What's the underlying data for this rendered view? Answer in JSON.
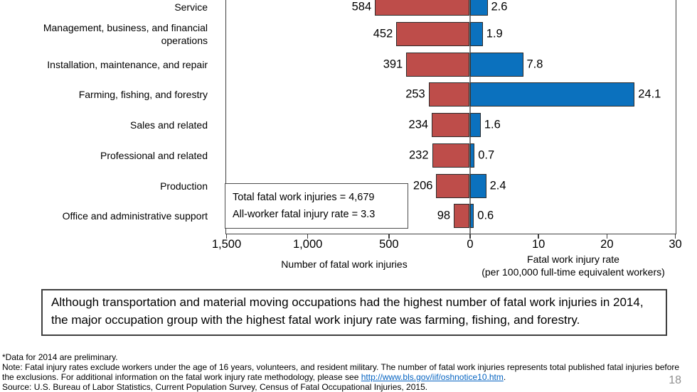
{
  "page_number": "18",
  "colors": {
    "injuries_bar": "#BE4D4A",
    "rate_bar": "#0B71BE",
    "bar_border": "#2b2b2b",
    "center_line": "#7f7f7f",
    "link": "#0563C1",
    "page_number": "#8f8f8f"
  },
  "chart_data": {
    "type": "bar",
    "subtype": "bidirectional-horizontal",
    "categories": [
      "Service",
      "Management, business, and financial operations",
      "Installation, maintenance, and repair",
      "Farming, fishing, and forestry",
      "Sales and related",
      "Professional and related",
      "Production",
      "Office and administrative support"
    ],
    "series": [
      {
        "name": "Number of fatal work injuries",
        "side": "left",
        "axis_max": 1500,
        "values": [
          584,
          452,
          391,
          253,
          234,
          232,
          206,
          98
        ]
      },
      {
        "name": "Fatal work injury rate",
        "side": "right",
        "axis_max": 30,
        "values": [
          2.6,
          1.9,
          7.8,
          24.1,
          1.6,
          0.7,
          2.4,
          0.6
        ]
      }
    ],
    "x_axis": {
      "left_ticks": [
        {
          "value": 1500,
          "label": "1,500"
        },
        {
          "value": 1000,
          "label": "1,000"
        },
        {
          "value": 500,
          "label": "500"
        },
        {
          "value": 0,
          "label": "0"
        }
      ],
      "right_ticks": [
        {
          "value": 10,
          "label": "10"
        },
        {
          "value": 20,
          "label": "20"
        },
        {
          "value": 30,
          "label": "30"
        }
      ],
      "left_title": "Number of fatal work injuries",
      "right_title_line1": "Fatal work injury rate",
      "right_title_line2": "(per 100,000 full-time equivalent workers)"
    },
    "stats_box": {
      "line1": "Total fatal work injuries = 4,679",
      "line2": "All-worker fatal injury rate = 3.3"
    },
    "gridlines": false,
    "legend": "none"
  },
  "callout": {
    "text": "Although transportation and material moving occupations had the highest number of fatal work injuries in 2014, the major occupation group with the highest fatal work injury rate was farming, fishing, and forestry."
  },
  "footnotes": {
    "line1": "*Data for 2014 are preliminary.",
    "note_before_link": "Note: Fatal injury rates exclude workers under the age of 16 years, volunteers, and resident military. The number of fatal work injuries represents total published fatal injuries before the exclusions. For additional information on the fatal work injury rate methodology, please see ",
    "link_text": "http://www.bls.gov/iif/oshnotice10.htm",
    "note_after_link": ".",
    "source": "Source:  U.S. Bureau of Labor Statistics, Current Population Survey, Census of Fatal Occupational Injuries, 2015."
  }
}
